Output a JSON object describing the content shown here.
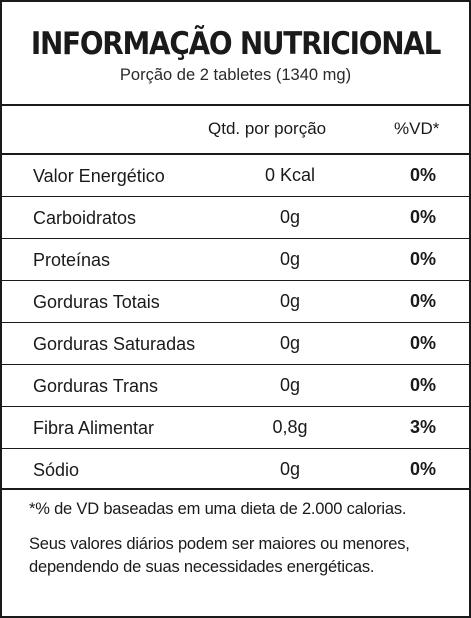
{
  "header": {
    "title": "INFORMAÇÃO NUTRICIONAL",
    "serving": "Porção de 2 tabletes (1340 mg)"
  },
  "table": {
    "columns": [
      "",
      "Qtd. por porção",
      "%VD*"
    ],
    "rows": [
      {
        "name": "Valor Energético",
        "qty": "0 Kcal",
        "vd": "0%"
      },
      {
        "name": "Carboidratos",
        "qty": "0g",
        "vd": "0%"
      },
      {
        "name": "Proteínas",
        "qty": "0g",
        "vd": "0%"
      },
      {
        "name": "Gorduras Totais",
        "qty": "0g",
        "vd": "0%"
      },
      {
        "name": "Gorduras Saturadas",
        "qty": "0g",
        "vd": "0%"
      },
      {
        "name": "Gorduras Trans",
        "qty": "0g",
        "vd": "0%"
      },
      {
        "name": "Fibra Alimentar",
        "qty": "0,8g",
        "vd": "3%"
      },
      {
        "name": "Sódio",
        "qty": "0g",
        "vd": "0%"
      }
    ]
  },
  "footer": {
    "note": "*% de VD baseadas em uma dieta de 2.000 calorias.",
    "disclaimer": "Seus valores diários podem ser maiores ou menores, dependendo de suas necessidades energéticas."
  }
}
